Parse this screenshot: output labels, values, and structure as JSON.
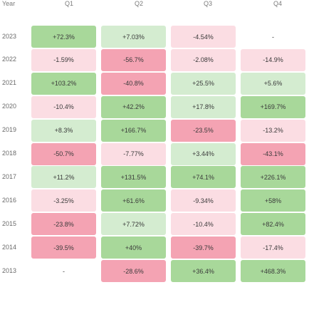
{
  "chart_data": {
    "type": "heatmap",
    "corner_label": "Year",
    "columns": [
      "Q1",
      "Q2",
      "Q3",
      "Q4"
    ],
    "rows": [
      {
        "year": "2023",
        "values": [
          72.3,
          7.03,
          -4.54,
          null
        ],
        "labels": [
          "+72.3%",
          "+7.03%",
          "-4.54%",
          "-"
        ]
      },
      {
        "year": "2022",
        "values": [
          -1.59,
          -56.7,
          -2.08,
          -14.9
        ],
        "labels": [
          "-1.59%",
          "-56.7%",
          "-2.08%",
          "-14.9%"
        ]
      },
      {
        "year": "2021",
        "values": [
          103.2,
          -40.8,
          25.5,
          5.6
        ],
        "labels": [
          "+103.2%",
          "-40.8%",
          "+25.5%",
          "+5.6%"
        ]
      },
      {
        "year": "2020",
        "values": [
          -10.4,
          42.2,
          17.8,
          169.7
        ],
        "labels": [
          "-10.4%",
          "+42.2%",
          "+17.8%",
          "+169.7%"
        ]
      },
      {
        "year": "2019",
        "values": [
          8.3,
          166.7,
          -23.5,
          -13.2
        ],
        "labels": [
          "+8.3%",
          "+166.7%",
          "-23.5%",
          "-13.2%"
        ]
      },
      {
        "year": "2018",
        "values": [
          -50.7,
          -7.77,
          3.44,
          -43.1
        ],
        "labels": [
          "-50.7%",
          "-7.77%",
          "+3.44%",
          "-43.1%"
        ]
      },
      {
        "year": "2017",
        "values": [
          11.2,
          131.5,
          74.1,
          226.1
        ],
        "labels": [
          "+11.2%",
          "+131.5%",
          "+74.1%",
          "+226.1%"
        ]
      },
      {
        "year": "2016",
        "values": [
          -3.25,
          61.6,
          -9.34,
          58
        ],
        "labels": [
          "-3.25%",
          "+61.6%",
          "-9.34%",
          "+58%"
        ]
      },
      {
        "year": "2015",
        "values": [
          -23.8,
          7.72,
          -10.4,
          82.4
        ],
        "labels": [
          "-23.8%",
          "+7.72%",
          "-10.4%",
          "+82.4%"
        ]
      },
      {
        "year": "2014",
        "values": [
          -39.5,
          40,
          -39.7,
          -17.4
        ],
        "labels": [
          "-39.5%",
          "+40%",
          "-39.7%",
          "-17.4%"
        ]
      },
      {
        "year": "2013",
        "values": [
          null,
          -28.6,
          36.4,
          468.3
        ],
        "labels": [
          "-",
          "-28.6%",
          "+36.4%",
          "+468.3%"
        ]
      }
    ],
    "colors": {
      "positive_strong": "#a8d89a",
      "positive_light": "#d4ecd0",
      "negative_strong": "#f4a3b3",
      "negative_light": "#fbdde3",
      "empty": "#ffffff"
    }
  }
}
